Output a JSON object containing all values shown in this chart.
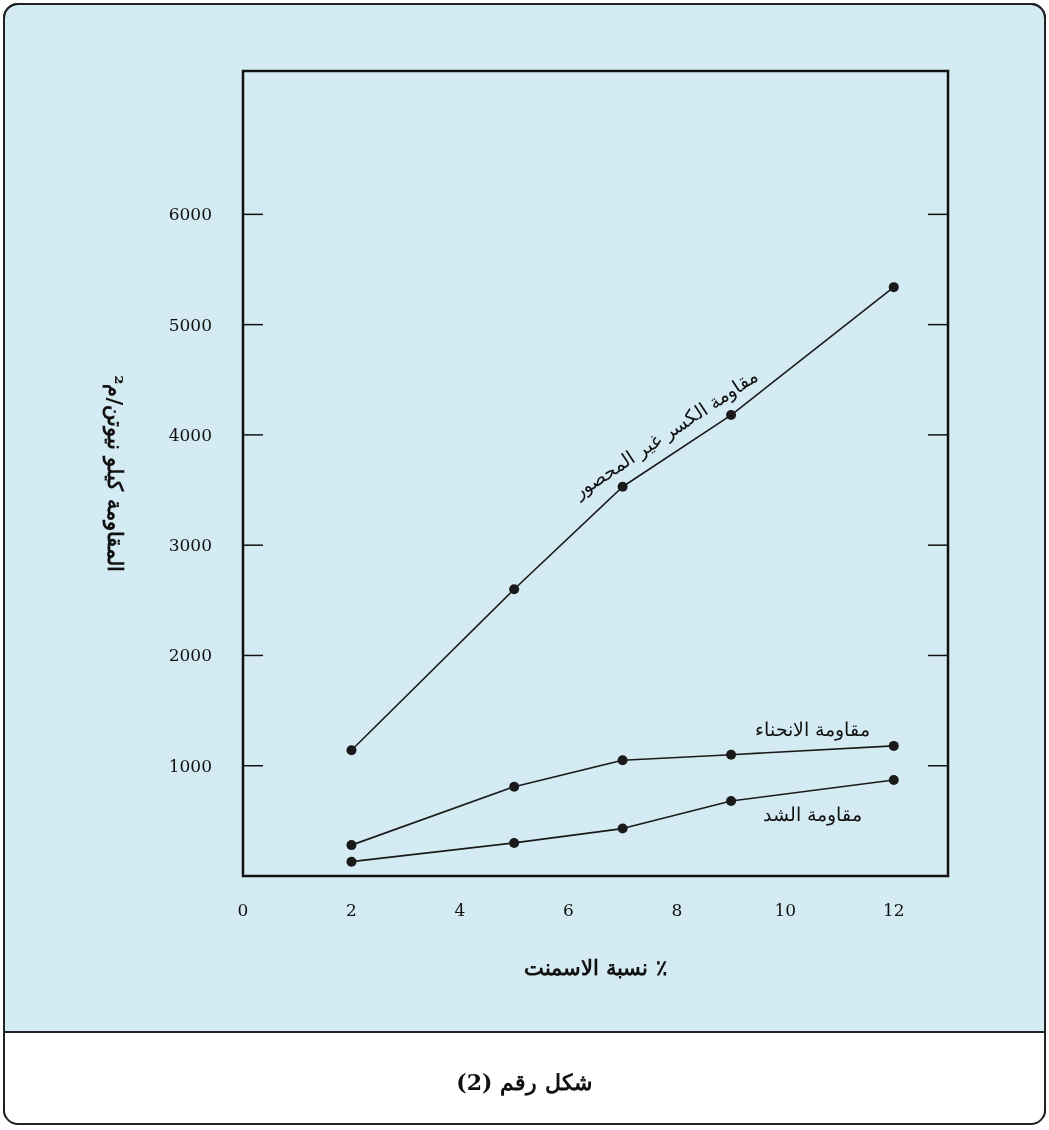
{
  "chart_data": {
    "type": "line",
    "xlabel": "نسبة الاسمنت ٪",
    "ylabel": "المقاومة كيلو نيوتن/م²",
    "annotations": [
      "شكل رقم (2)"
    ],
    "x": [
      2,
      5,
      7,
      9,
      12
    ],
    "xlim": [
      0,
      13
    ],
    "xticks": [
      0,
      2,
      4,
      6,
      8,
      10,
      12
    ],
    "ylim": [
      0,
      7300
    ],
    "yticks": [
      1000,
      2000,
      3000,
      4000,
      5000,
      6000
    ],
    "grid": false,
    "marker": "circle",
    "line_style": "solid",
    "series": [
      {
        "name": "مقاومة الكسر غير المحصور",
        "color": "#1a1a1a",
        "values": [
          1140,
          2600,
          3530,
          4180,
          5340
        ]
      },
      {
        "name": "مقاومة الانحناء",
        "color": "#1a1a1a",
        "values": [
          280,
          810,
          1050,
          1100,
          1180
        ]
      },
      {
        "name": "مقاومة الشد",
        "color": "#1a1a1a",
        "values": [
          130,
          300,
          430,
          680,
          870
        ]
      }
    ]
  }
}
